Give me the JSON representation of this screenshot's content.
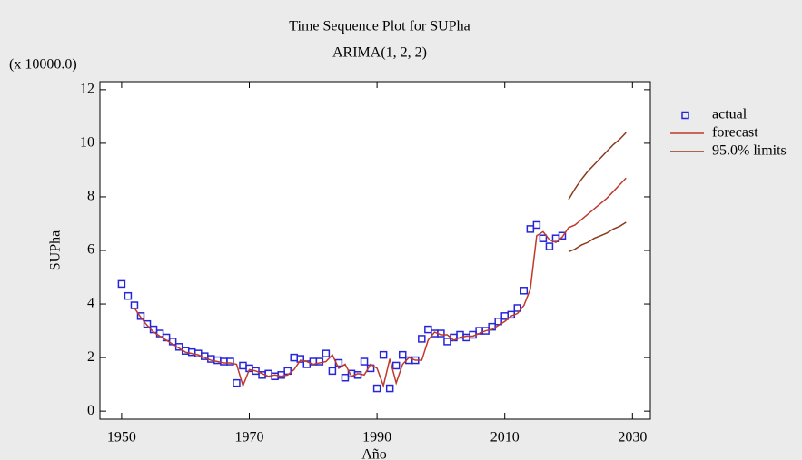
{
  "chart_data": {
    "type": "line",
    "title": "Time Sequence Plot for SUPha",
    "subtitle": "ARIMA(1, 2, 2)",
    "multiplier": "(x 10000.0)",
    "x_label": "Año",
    "y_label": "SUPha",
    "xlim": [
      1946.6,
      2032.8
    ],
    "xticks": [
      1950,
      1970,
      1990,
      2010,
      2030
    ],
    "ylim": [
      -0.3,
      12.3
    ],
    "yticks": [
      0,
      2,
      4,
      6,
      8,
      10,
      12
    ],
    "legend": "right",
    "series": [
      {
        "name": "actual",
        "style": "markers",
        "color": "#2626d9",
        "x": [
          1950,
          1951,
          1952,
          1953,
          1954,
          1955,
          1956,
          1957,
          1958,
          1959,
          1960,
          1961,
          1962,
          1963,
          1964,
          1965,
          1966,
          1967,
          1968,
          1969,
          1970,
          1971,
          1972,
          1973,
          1974,
          1975,
          1976,
          1977,
          1978,
          1979,
          1980,
          1981,
          1982,
          1983,
          1984,
          1985,
          1986,
          1987,
          1988,
          1989,
          1990,
          1991,
          1992,
          1993,
          1994,
          1995,
          1996,
          1997,
          1998,
          1999,
          2000,
          2001,
          2002,
          2003,
          2004,
          2005,
          2006,
          2007,
          2008,
          2009,
          2010,
          2011,
          2012,
          2013,
          2014,
          2015,
          2016,
          2017,
          2018,
          2019
        ],
        "values": [
          4.75,
          4.3,
          3.95,
          3.55,
          3.25,
          3.05,
          2.9,
          2.75,
          2.6,
          2.4,
          2.25,
          2.2,
          2.15,
          2.05,
          1.95,
          1.9,
          1.85,
          1.85,
          1.05,
          1.7,
          1.6,
          1.5,
          1.35,
          1.4,
          1.3,
          1.35,
          1.5,
          2.0,
          1.95,
          1.75,
          1.85,
          1.85,
          2.15,
          1.5,
          1.8,
          1.25,
          1.4,
          1.35,
          1.85,
          1.6,
          0.85,
          2.1,
          0.85,
          1.7,
          2.1,
          1.9,
          1.9,
          2.7,
          3.05,
          2.9,
          2.9,
          2.6,
          2.75,
          2.85,
          2.75,
          2.85,
          3.0,
          3.0,
          3.15,
          3.35,
          3.55,
          3.6,
          3.85,
          4.5,
          6.8,
          6.95,
          6.45,
          6.15,
          6.45,
          6.55
        ]
      },
      {
        "name": "forecast",
        "style": "line",
        "color": "#c0392b",
        "x": [
          1952,
          1953,
          1954,
          1955,
          1956,
          1957,
          1958,
          1959,
          1960,
          1961,
          1962,
          1963,
          1964,
          1965,
          1966,
          1967,
          1968,
          1969,
          1970,
          1971,
          1972,
          1973,
          1974,
          1975,
          1976,
          1977,
          1978,
          1979,
          1980,
          1981,
          1982,
          1983,
          1984,
          1985,
          1986,
          1987,
          1988,
          1989,
          1990,
          1991,
          1992,
          1993,
          1994,
          1995,
          1996,
          1997,
          1998,
          1999,
          2000,
          2001,
          2002,
          2003,
          2004,
          2005,
          2006,
          2007,
          2008,
          2009,
          2010,
          2011,
          2012,
          2013,
          2014,
          2015,
          2016,
          2017,
          2018,
          2019,
          2020,
          2021,
          2022,
          2023,
          2024,
          2025,
          2026,
          2027,
          2028,
          2029
        ],
        "values": [
          3.85,
          3.5,
          3.2,
          2.95,
          2.8,
          2.65,
          2.5,
          2.35,
          2.2,
          2.15,
          2.1,
          2.0,
          1.9,
          1.85,
          1.8,
          1.8,
          1.75,
          0.95,
          1.55,
          1.5,
          1.4,
          1.3,
          1.35,
          1.3,
          1.35,
          1.55,
          1.9,
          1.85,
          1.75,
          1.8,
          1.85,
          2.1,
          1.6,
          1.75,
          1.3,
          1.4,
          1.35,
          1.75,
          1.6,
          0.95,
          1.95,
          1.05,
          1.75,
          2.0,
          1.9,
          1.9,
          2.65,
          2.95,
          2.85,
          2.85,
          2.65,
          2.75,
          2.8,
          2.8,
          2.9,
          3.0,
          3.05,
          3.2,
          3.35,
          3.55,
          3.65,
          3.95,
          4.55,
          6.55,
          6.7,
          6.4,
          6.3,
          6.5,
          6.85,
          6.95,
          7.15,
          7.35,
          7.55,
          7.75,
          7.95,
          8.2,
          8.45,
          8.7
        ]
      },
      {
        "name": "95.0% limits",
        "style": "line",
        "color": "#8b3a1a",
        "x": [
          2020,
          2021,
          2022,
          2023,
          2024,
          2025,
          2026,
          2027,
          2028,
          2029
        ],
        "values": [
          7.9,
          8.3,
          8.65,
          8.95,
          9.2,
          9.45,
          9.7,
          9.95,
          10.15,
          10.4
        ]
      },
      {
        "style": "line",
        "color": "#8b3a1a",
        "x": [
          2020,
          2021,
          2022,
          2023,
          2024,
          2025,
          2026,
          2027,
          2028,
          2029
        ],
        "values": [
          5.95,
          6.05,
          6.2,
          6.3,
          6.45,
          6.55,
          6.65,
          6.8,
          6.9,
          7.05
        ]
      }
    ]
  }
}
